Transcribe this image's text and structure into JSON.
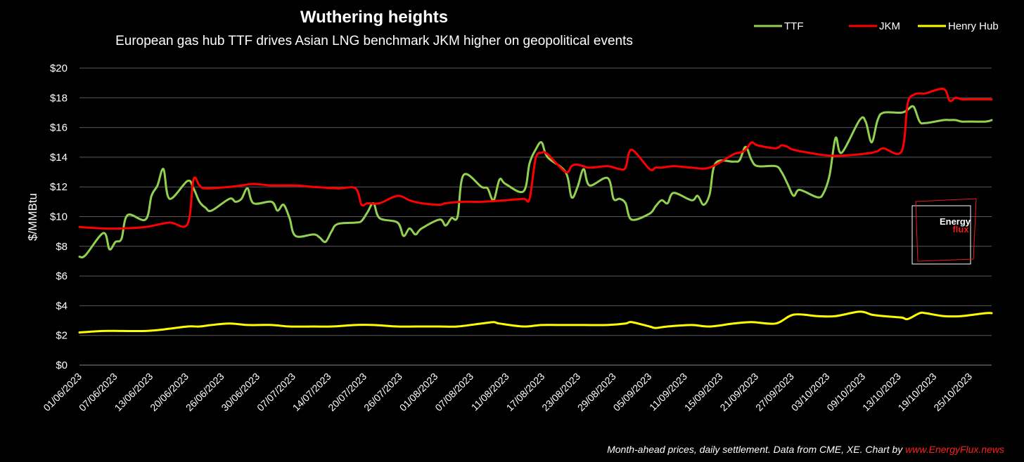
{
  "chart_data": {
    "type": "line",
    "title": "Wuthering heights",
    "subtitle": "European gas hub TTF drives Asian LNG benchmark JKM higher on geopolitical events",
    "ylabel": "$/MMBtu",
    "xlabel": "",
    "ylim": [
      0,
      20
    ],
    "yticks": [
      0,
      2,
      4,
      6,
      8,
      10,
      12,
      14,
      16,
      18,
      20
    ],
    "ytick_labels": [
      "$0",
      "$2",
      "$4",
      "$6",
      "$8",
      "$10",
      "$12",
      "$14",
      "$16",
      "$18",
      "$20"
    ],
    "xlim": [
      "2023-06-01",
      "2023-10-31"
    ],
    "xtick_labels": [
      "01/06/2023",
      "07/06/2023",
      "13/06/2023",
      "20/06/2023",
      "26/06/2023",
      "30/06/2023",
      "07/07/2023",
      "14/07/2023",
      "20/07/2023",
      "26/07/2023",
      "01/08/2023",
      "07/08/2023",
      "11/08/2023",
      "17/08/2023",
      "23/08/2023",
      "29/08/2023",
      "05/09/2023",
      "11/09/2023",
      "15/09/2023",
      "21/09/2023",
      "27/09/2023",
      "03/10/2023",
      "09/10/2023",
      "13/10/2023",
      "19/10/2023",
      "25/10/2023"
    ],
    "grid": "horizontal",
    "legend_position": "top-right",
    "series": [
      {
        "name": "TTF",
        "color": "#92d050",
        "x": [
          "2023-06-01",
          "2023-06-02",
          "2023-06-05",
          "2023-06-06",
          "2023-06-07",
          "2023-06-08",
          "2023-06-09",
          "2023-06-12",
          "2023-06-13",
          "2023-06-14",
          "2023-06-15",
          "2023-06-16",
          "2023-06-19",
          "2023-06-20",
          "2023-06-21",
          "2023-06-22",
          "2023-06-23",
          "2023-06-26",
          "2023-06-27",
          "2023-06-28",
          "2023-06-29",
          "2023-06-30",
          "2023-07-03",
          "2023-07-04",
          "2023-07-05",
          "2023-07-06",
          "2023-07-07",
          "2023-07-10",
          "2023-07-11",
          "2023-07-12",
          "2023-07-13",
          "2023-07-14",
          "2023-07-17",
          "2023-07-18",
          "2023-07-19",
          "2023-07-20",
          "2023-07-21",
          "2023-07-24",
          "2023-07-25",
          "2023-07-26",
          "2023-07-27",
          "2023-07-28",
          "2023-07-31",
          "2023-08-01",
          "2023-08-02",
          "2023-08-03",
          "2023-08-04",
          "2023-08-07",
          "2023-08-08",
          "2023-08-09",
          "2023-08-10",
          "2023-08-11",
          "2023-08-14",
          "2023-08-15",
          "2023-08-16",
          "2023-08-17",
          "2023-08-18",
          "2023-08-21",
          "2023-08-22",
          "2023-08-23",
          "2023-08-24",
          "2023-08-25",
          "2023-08-28",
          "2023-08-29",
          "2023-08-30",
          "2023-08-31",
          "2023-09-01",
          "2023-09-04",
          "2023-09-05",
          "2023-09-06",
          "2023-09-07",
          "2023-09-08",
          "2023-09-11",
          "2023-09-12",
          "2023-09-13",
          "2023-09-14",
          "2023-09-15",
          "2023-09-18",
          "2023-09-19",
          "2023-09-20",
          "2023-09-21",
          "2023-09-22",
          "2023-09-25",
          "2023-09-26",
          "2023-09-27",
          "2023-09-28",
          "2023-09-29",
          "2023-10-02",
          "2023-10-03",
          "2023-10-04",
          "2023-10-05",
          "2023-10-06",
          "2023-10-09",
          "2023-10-10",
          "2023-10-11",
          "2023-10-12",
          "2023-10-13",
          "2023-10-16",
          "2023-10-17",
          "2023-10-18",
          "2023-10-19",
          "2023-10-20",
          "2023-10-23",
          "2023-10-24",
          "2023-10-25",
          "2023-10-26",
          "2023-10-27",
          "2023-10-30",
          "2023-10-31"
        ],
        "y": [
          7.3,
          7.4,
          8.9,
          7.8,
          8.3,
          8.5,
          10.1,
          9.8,
          11.4,
          12.1,
          13.2,
          11.2,
          12.4,
          11.9,
          11.0,
          10.6,
          10.4,
          11.2,
          11.0,
          11.2,
          11.9,
          10.9,
          11.0,
          10.4,
          10.8,
          9.9,
          8.7,
          8.8,
          8.6,
          8.3,
          9.0,
          9.5,
          9.6,
          9.7,
          10.3,
          10.9,
          9.9,
          9.6,
          8.7,
          9.2,
          8.8,
          9.2,
          9.8,
          9.4,
          9.9,
          10.0,
          12.8,
          12.0,
          11.9,
          11.1,
          12.5,
          12.2,
          11.7,
          13.6,
          14.5,
          15.0,
          14.0,
          13.0,
          11.3,
          12.0,
          13.2,
          12.1,
          12.6,
          11.2,
          11.2,
          10.9,
          9.8,
          10.2,
          10.7,
          11.1,
          10.9,
          11.6,
          11.1,
          11.4,
          10.8,
          11.5,
          13.6,
          13.7,
          13.8,
          14.7,
          13.8,
          13.4,
          13.4,
          13.0,
          12.2,
          11.4,
          11.8,
          11.3,
          11.6,
          12.8,
          15.3,
          14.3,
          16.5,
          16.4,
          15.0,
          16.5,
          17.0,
          17.0,
          17.2,
          17.4,
          16.4,
          16.3,
          16.5,
          16.5,
          16.5,
          16.4,
          16.4,
          16.4,
          16.5
        ]
      },
      {
        "name": "JKM",
        "color": "#ff0000",
        "x": [
          "2023-06-01",
          "2023-06-05",
          "2023-06-08",
          "2023-06-12",
          "2023-06-16",
          "2023-06-19",
          "2023-06-20",
          "2023-06-21",
          "2023-06-22",
          "2023-06-26",
          "2023-06-28",
          "2023-06-30",
          "2023-07-03",
          "2023-07-07",
          "2023-07-10",
          "2023-07-14",
          "2023-07-17",
          "2023-07-18",
          "2023-07-19",
          "2023-07-21",
          "2023-07-24",
          "2023-07-26",
          "2023-07-28",
          "2023-07-31",
          "2023-08-01",
          "2023-08-04",
          "2023-08-07",
          "2023-08-11",
          "2023-08-14",
          "2023-08-15",
          "2023-08-16",
          "2023-08-17",
          "2023-08-18",
          "2023-08-21",
          "2023-08-22",
          "2023-08-23",
          "2023-08-25",
          "2023-08-28",
          "2023-08-30",
          "2023-08-31",
          "2023-09-01",
          "2023-09-04",
          "2023-09-05",
          "2023-09-06",
          "2023-09-08",
          "2023-09-11",
          "2023-09-14",
          "2023-09-18",
          "2023-09-19",
          "2023-09-20",
          "2023-09-21",
          "2023-09-22",
          "2023-09-25",
          "2023-09-26",
          "2023-09-27",
          "2023-09-28",
          "2023-10-02",
          "2023-10-04",
          "2023-10-06",
          "2023-10-09",
          "2023-10-11",
          "2023-10-12",
          "2023-10-13",
          "2023-10-16",
          "2023-10-17",
          "2023-10-18",
          "2023-10-19",
          "2023-10-20",
          "2023-10-23",
          "2023-10-24",
          "2023-10-25",
          "2023-10-26",
          "2023-10-27",
          "2023-10-30",
          "2023-10-31"
        ],
        "y": [
          9.3,
          9.2,
          9.2,
          9.3,
          9.6,
          9.5,
          12.5,
          12.1,
          11.9,
          12.0,
          12.1,
          12.2,
          12.1,
          12.1,
          12.0,
          11.9,
          11.9,
          10.8,
          10.9,
          10.9,
          11.4,
          11.1,
          10.9,
          10.8,
          10.9,
          11.0,
          11.0,
          11.1,
          11.2,
          11.2,
          13.9,
          14.3,
          14.2,
          13.0,
          13.4,
          13.5,
          13.3,
          13.4,
          13.2,
          13.3,
          14.5,
          13.2,
          13.3,
          13.3,
          13.4,
          13.3,
          13.3,
          14.2,
          14.3,
          14.5,
          15.0,
          14.8,
          14.6,
          14.8,
          14.7,
          14.5,
          14.2,
          14.1,
          14.1,
          14.2,
          14.3,
          14.4,
          14.6,
          14.4,
          17.6,
          18.2,
          18.3,
          18.3,
          18.6,
          17.8,
          18.0,
          17.9,
          17.9,
          17.9,
          17.9
        ]
      },
      {
        "name": "Henry Hub",
        "color": "#ffff00",
        "x": [
          "2023-06-01",
          "2023-06-05",
          "2023-06-08",
          "2023-06-12",
          "2023-06-15",
          "2023-06-19",
          "2023-06-21",
          "2023-06-23",
          "2023-06-26",
          "2023-06-29",
          "2023-07-03",
          "2023-07-06",
          "2023-07-10",
          "2023-07-13",
          "2023-07-17",
          "2023-07-20",
          "2023-07-24",
          "2023-07-27",
          "2023-07-31",
          "2023-08-03",
          "2023-08-07",
          "2023-08-09",
          "2023-08-10",
          "2023-08-14",
          "2023-08-17",
          "2023-08-21",
          "2023-08-24",
          "2023-08-28",
          "2023-08-31",
          "2023-09-01",
          "2023-09-04",
          "2023-09-05",
          "2023-09-07",
          "2023-09-11",
          "2023-09-14",
          "2023-09-18",
          "2023-09-21",
          "2023-09-25",
          "2023-09-28",
          "2023-10-02",
          "2023-10-05",
          "2023-10-09",
          "2023-10-11",
          "2023-10-13",
          "2023-10-16",
          "2023-10-17",
          "2023-10-19",
          "2023-10-20",
          "2023-10-23",
          "2023-10-26",
          "2023-10-30",
          "2023-10-31"
        ],
        "y": [
          2.2,
          2.3,
          2.3,
          2.3,
          2.4,
          2.6,
          2.6,
          2.7,
          2.8,
          2.7,
          2.7,
          2.6,
          2.6,
          2.6,
          2.7,
          2.7,
          2.6,
          2.6,
          2.6,
          2.6,
          2.8,
          2.9,
          2.8,
          2.6,
          2.7,
          2.7,
          2.7,
          2.7,
          2.8,
          2.9,
          2.6,
          2.5,
          2.6,
          2.7,
          2.6,
          2.8,
          2.9,
          2.8,
          3.4,
          3.3,
          3.3,
          3.6,
          3.4,
          3.3,
          3.2,
          3.1,
          3.5,
          3.5,
          3.3,
          3.3,
          3.5,
          3.5
        ]
      }
    ],
    "footer_text": "Month-ahead prices, daily settlement. Data from CME, XE. Chart by ",
    "footer_link": "www.EnergyFlux.news",
    "logo": {
      "line1": "Energy",
      "line2": "flux"
    }
  }
}
